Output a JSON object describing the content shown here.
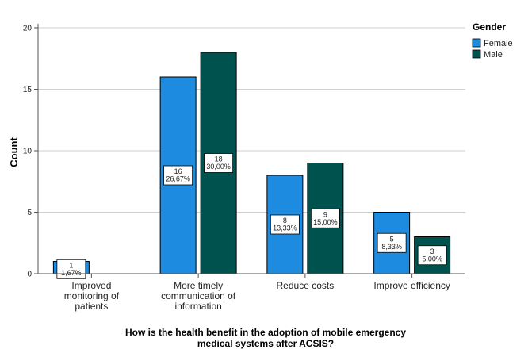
{
  "chart_data": {
    "type": "bar",
    "ylabel": "Count",
    "xlabel": [
      "How is the health benefit in the adoption of mobile emergency",
      "medical systems after ACSIS?"
    ],
    "ylim": [
      0,
      20
    ],
    "yticks": [
      0,
      5,
      10,
      15,
      20
    ],
    "grid": true,
    "legend": {
      "title": "Gender",
      "placement": "top-right"
    },
    "categories": [
      [
        "Improved",
        "monitoring  of",
        "patients"
      ],
      [
        "More timely",
        "communication of",
        "information"
      ],
      [
        "Reduce costs"
      ],
      [
        "Improve efficiency"
      ]
    ],
    "series": [
      {
        "name": "Female",
        "color": "#1c8be0",
        "values": [
          1,
          16,
          8,
          5
        ],
        "labels": [
          [
            "1",
            "1,67%"
          ],
          [
            "16",
            "26,67%"
          ],
          [
            "8",
            "13,33%"
          ],
          [
            "5",
            "8,33%"
          ]
        ]
      },
      {
        "name": "Male",
        "color": "#00524f",
        "values": [
          0,
          18,
          9,
          3
        ],
        "labels": [
          [],
          [
            "18",
            "30,00%"
          ],
          [
            "9",
            "15,00%"
          ],
          [
            "3",
            "5,00%"
          ]
        ]
      }
    ]
  }
}
